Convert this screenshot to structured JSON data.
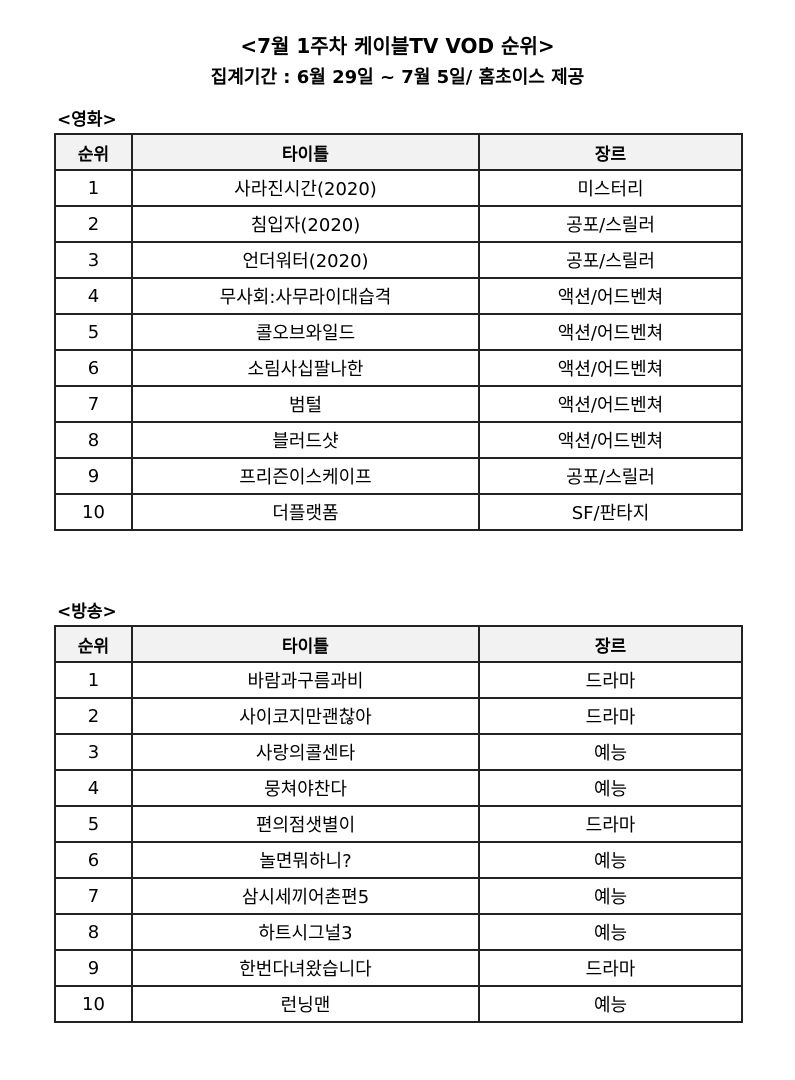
{
  "title": "<7월 1주차 케이블TV VOD 순위>",
  "subtitle": "집계기간 : 6월 29일 ~ 7월 5일/ 홈초이스 제공",
  "columns": [
    "순위",
    "타이틀",
    "장르"
  ],
  "movies": {
    "label": "<영화>",
    "rows": [
      [
        "1",
        "사라진시간(2020)",
        "미스터리"
      ],
      [
        "2",
        "침입자(2020)",
        "공포/스릴러"
      ],
      [
        "3",
        "언더워터(2020)",
        "공포/스릴러"
      ],
      [
        "4",
        "무사회:사무라이대습격",
        "액션/어드벤쳐"
      ],
      [
        "5",
        "콜오브와일드",
        "액션/어드벤쳐"
      ],
      [
        "6",
        "소림사십팔나한",
        "액션/어드벤쳐"
      ],
      [
        "7",
        "범털",
        "액션/어드벤쳐"
      ],
      [
        "8",
        "블러드샷",
        "액션/어드벤쳐"
      ],
      [
        "9",
        "프리즌이스케이프",
        "공포/스릴러"
      ],
      [
        "10",
        "더플랫폼",
        "SF/판타지"
      ]
    ]
  },
  "broadcast": {
    "label": "<방송>",
    "rows": [
      [
        "1",
        "바람과구름과비",
        "드라마"
      ],
      [
        "2",
        "사이코지만괜찮아",
        "드라마"
      ],
      [
        "3",
        "사랑의콜센타",
        "예능"
      ],
      [
        "4",
        "뭉쳐야찬다",
        "예능"
      ],
      [
        "5",
        "편의점샛별이",
        "드라마"
      ],
      [
        "6",
        "놀면뭐하니?",
        "예능"
      ],
      [
        "7",
        "삼시세끼어촌편5",
        "예능"
      ],
      [
        "8",
        "하트시그널3",
        "예능"
      ],
      [
        "9",
        "한번다녀왔습니다",
        "드라마"
      ],
      [
        "10",
        "런닝맨",
        "예능"
      ]
    ]
  }
}
